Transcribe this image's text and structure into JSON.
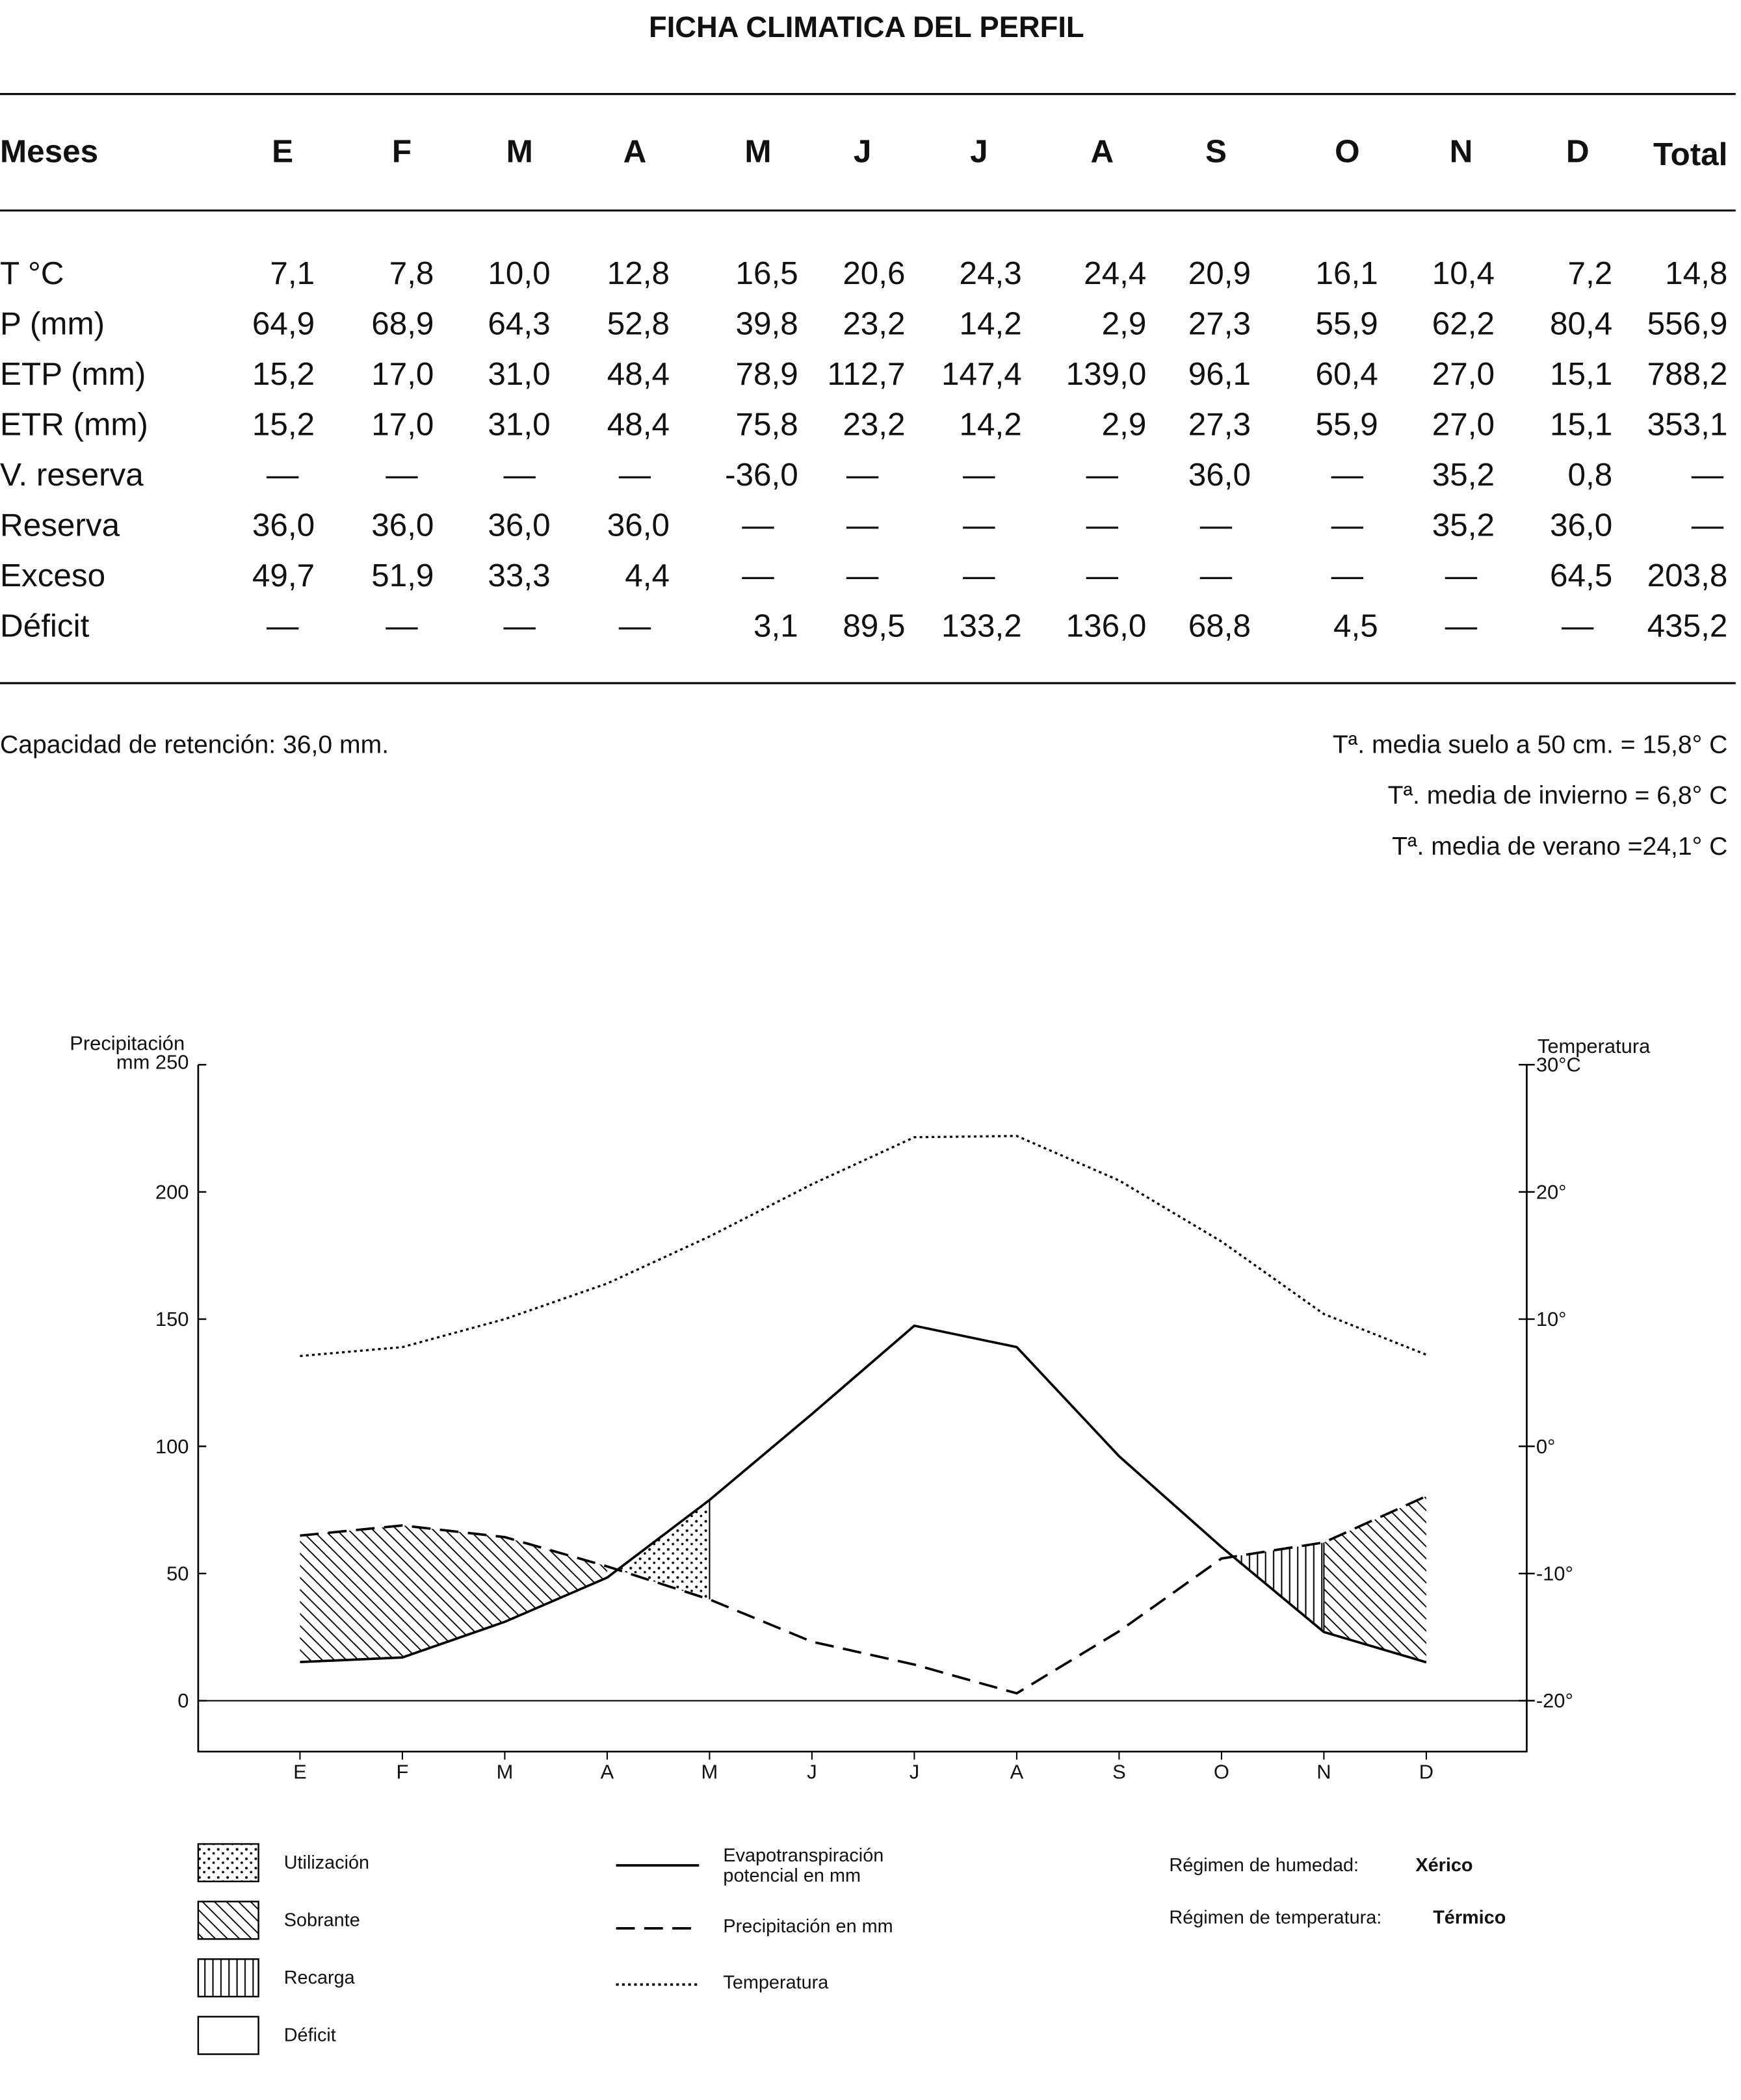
{
  "title": "FICHA CLIMATICA DEL PERFIL",
  "table": {
    "header": [
      "Meses",
      "E",
      "F",
      "M",
      "A",
      "M",
      "J",
      "J",
      "A",
      "S",
      "O",
      "N",
      "D",
      "Total"
    ],
    "rows": [
      [
        "T °C",
        "7,1",
        "7,8",
        "10,0",
        "12,8",
        "16,5",
        "20,6",
        "24,3",
        "24,4",
        "20,9",
        "16,1",
        "10,4",
        "7,2",
        "14,8"
      ],
      [
        "P (mm)",
        "64,9",
        "68,9",
        "64,3",
        "52,8",
        "39,8",
        "23,2",
        "14,2",
        "2,9",
        "27,3",
        "55,9",
        "62,2",
        "80,4",
        "556,9"
      ],
      [
        "ETP (mm)",
        "15,2",
        "17,0",
        "31,0",
        "48,4",
        "78,9",
        "112,7",
        "147,4",
        "139,0",
        "96,1",
        "60,4",
        "27,0",
        "15,1",
        "788,2"
      ],
      [
        "ETR (mm)",
        "15,2",
        "17,0",
        "31,0",
        "48,4",
        "75,8",
        "23,2",
        "14,2",
        "2,9",
        "27,3",
        "55,9",
        "27,0",
        "15,1",
        "353,1"
      ],
      [
        "V. reserva",
        "—",
        "—",
        "—",
        "—",
        "-36,0",
        "—",
        "—",
        "—",
        "36,0",
        "—",
        "35,2",
        "0,8",
        "—"
      ],
      [
        "Reserva",
        "36,0",
        "36,0",
        "36,0",
        "36,0",
        "—",
        "—",
        "—",
        "—",
        "—",
        "—",
        "35,2",
        "36,0",
        "—"
      ],
      [
        "Exceso",
        "49,7",
        "51,9",
        "33,3",
        "4,4",
        "—",
        "—",
        "—",
        "—",
        "—",
        "—",
        "—",
        "64,5",
        "203,8"
      ],
      [
        "Déficit",
        "—",
        "—",
        "—",
        "—",
        "3,1",
        "89,5",
        "133,2",
        "136,0",
        "68,8",
        "4,5",
        "—",
        "—",
        "435,2"
      ]
    ]
  },
  "notes": {
    "left": "Capacidad de retención: 36,0 mm.",
    "right": [
      "Tª. media suelo a 50 cm. = 15,8° C",
      "Tª. media de invierno = 6,8° C",
      "Tª. media de verano =24,1° C"
    ]
  },
  "chart_data": {
    "type": "line",
    "ylabel": "Precipitación",
    "y2label": "Temperatura",
    "categories": [
      "E",
      "F",
      "M",
      "A",
      "M",
      "J",
      "J",
      "A",
      "S",
      "O",
      "N",
      "D"
    ],
    "ylim": [
      -20,
      250
    ],
    "yticks": [
      0,
      50,
      100,
      150,
      200,
      {
        "value": 250,
        "label": "mm 250"
      }
    ],
    "y2lim": [
      -24,
      30
    ],
    "y2ticks": [
      {
        "value": -20,
        "label": "-20°"
      },
      {
        "value": -10,
        "label": "-10°"
      },
      {
        "value": 0,
        "label": "0°"
      },
      {
        "value": 10,
        "label": "10°"
      },
      {
        "value": 20,
        "label": "20°"
      },
      {
        "value": 30,
        "label": "30°C"
      }
    ],
    "series": [
      {
        "name": "Evapotranspiración potencial en mm",
        "color": "#000000",
        "dash": "solid",
        "values": [
          15.2,
          17.0,
          31.0,
          48.4,
          78.9,
          112.7,
          147.4,
          139.0,
          96.1,
          60.4,
          27.0,
          15.1
        ]
      },
      {
        "name": "Precipitación en mm",
        "color": "#000000",
        "dash": "dashed",
        "values": [
          64.9,
          68.9,
          64.3,
          52.8,
          39.8,
          23.2,
          14.2,
          2.9,
          27.3,
          55.9,
          62.2,
          80.4
        ]
      },
      {
        "name": "Temperatura",
        "color": "#000000",
        "dash": "dotted",
        "axis": "y2",
        "values": [
          7.1,
          7.8,
          10.0,
          12.8,
          16.5,
          20.6,
          24.3,
          24.4,
          20.9,
          16.1,
          10.4,
          7.2
        ]
      }
    ],
    "areas": [
      {
        "name": "Utilización",
        "pattern": "dots"
      },
      {
        "name": "Sobrante",
        "pattern": "diagonal"
      },
      {
        "name": "Recarga",
        "pattern": "vertical"
      },
      {
        "name": "Déficit",
        "pattern": "none"
      }
    ]
  },
  "regimes": [
    {
      "label": "Régimen de humedad:",
      "value": "Xérico"
    },
    {
      "label": "Régimen de temperatura:",
      "value": "Térmico"
    }
  ]
}
